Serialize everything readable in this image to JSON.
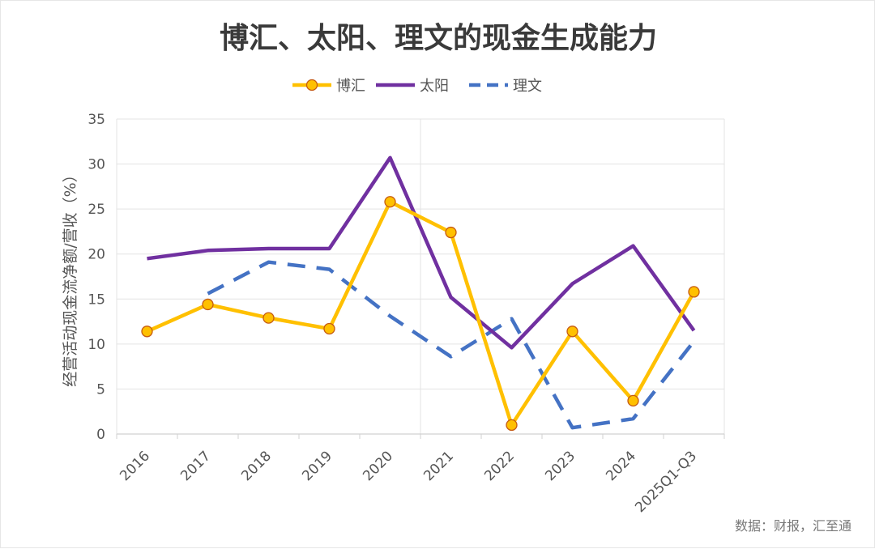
{
  "chart_data": {
    "type": "line",
    "title": "博汇、太阳、理文的现金生成能力",
    "ylabel": "经营活动现金流净额/营收（%）",
    "xlabel": "",
    "ylim": [
      0,
      35
    ],
    "yticks": [
      0,
      5,
      10,
      15,
      20,
      25,
      30,
      35
    ],
    "categories": [
      "2016",
      "2017",
      "2018",
      "2019",
      "2020",
      "2021",
      "2022",
      "2023",
      "2024",
      "2025Q1-Q3"
    ],
    "grid": true,
    "legend_position": "top-center",
    "series": [
      {
        "name": "博汇",
        "color": "#FFC000",
        "style": "solid",
        "marker": "circle",
        "values": [
          11.4,
          14.4,
          12.9,
          11.7,
          25.8,
          22.4,
          1.0,
          11.4,
          3.7,
          15.8
        ]
      },
      {
        "name": "太阳",
        "color": "#7030A0",
        "style": "solid",
        "marker": "none",
        "values": [
          19.5,
          20.4,
          20.6,
          20.6,
          30.7,
          15.2,
          9.6,
          16.7,
          20.9,
          11.5
        ]
      },
      {
        "name": "理文",
        "color": "#4472C4",
        "style": "dashed",
        "marker": "none",
        "values": [
          null,
          15.6,
          19.1,
          18.3,
          13.1,
          8.6,
          12.8,
          0.7,
          1.7,
          10.3
        ]
      }
    ],
    "source": "数据：财报，汇至通"
  }
}
